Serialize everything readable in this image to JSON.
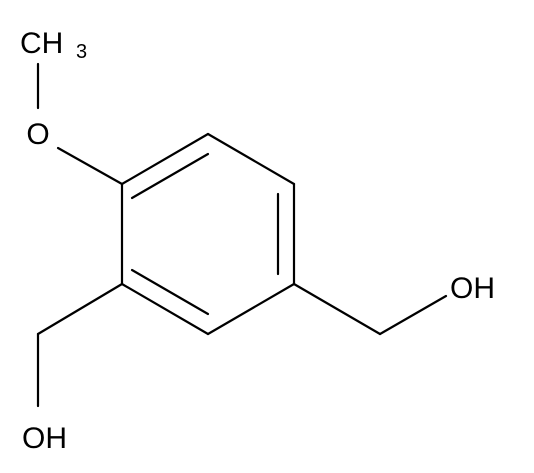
{
  "molecule": {
    "labels": {
      "methyl": {
        "main": "CH",
        "subscript": "3"
      },
      "methoxy_oxygen": "O",
      "hydroxyl_right": "OH",
      "hydroxyl_left": "OH"
    }
  }
}
